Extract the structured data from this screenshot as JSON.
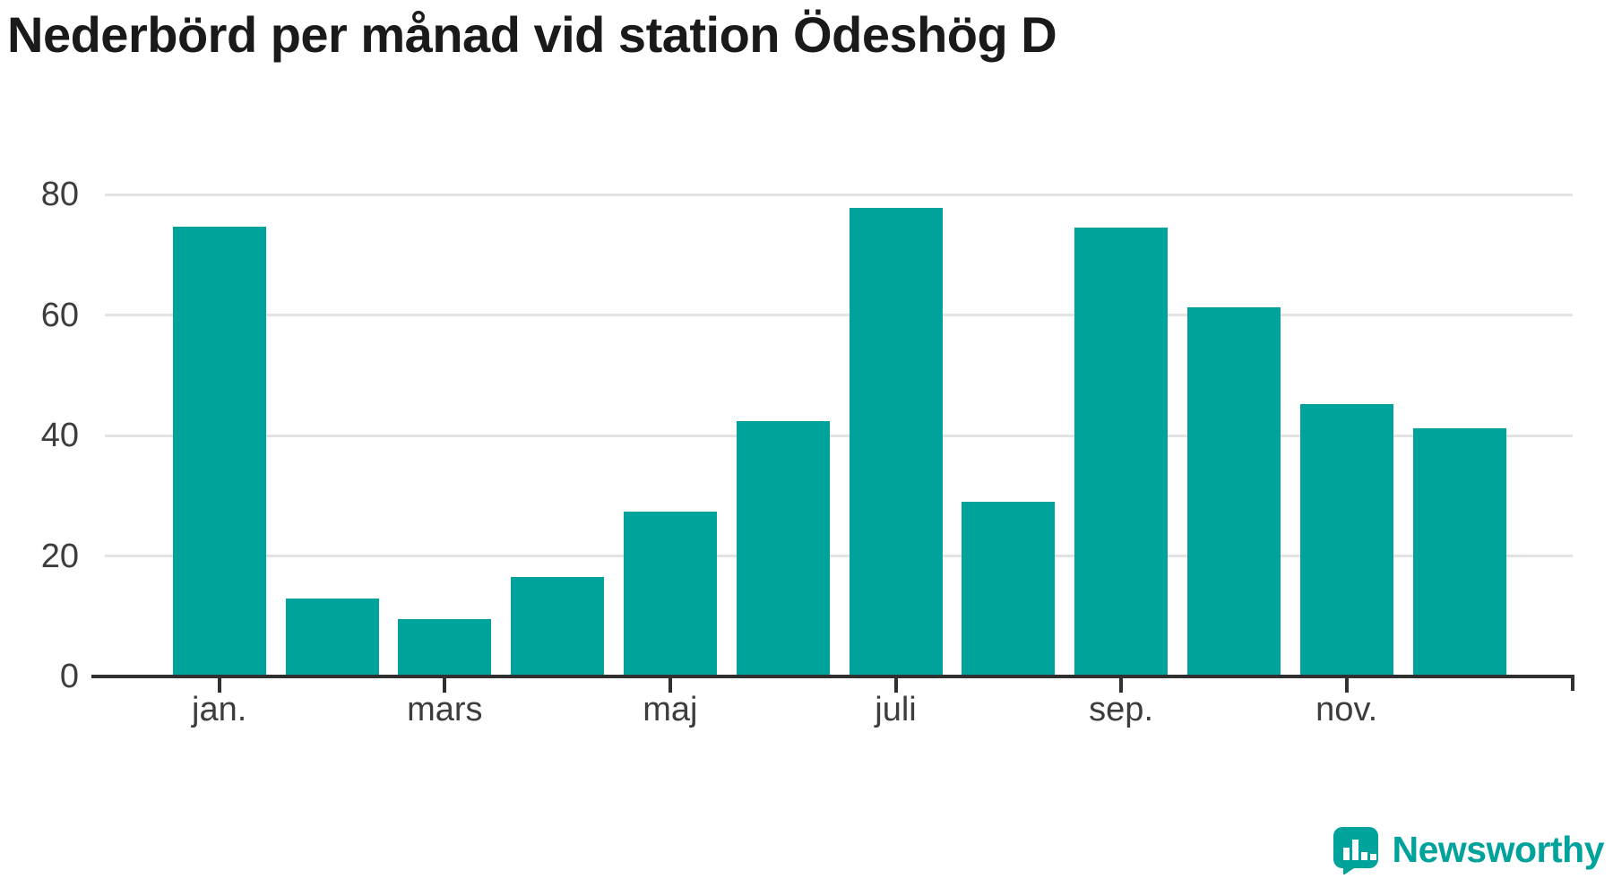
{
  "title": "Nederbörd per månad vid station Ödeshög D",
  "colors": {
    "bar": "#00a39b",
    "axis_line": "#303030",
    "gridline": "#e3e3e3",
    "title_text": "#1a1a1a",
    "tick_label_text": "#3d3d3d",
    "logo": "#00a39b",
    "background": "#ffffff"
  },
  "y_axis": {
    "tick_labels": [
      "0",
      "20",
      "40",
      "60",
      "80"
    ]
  },
  "x_axis": {
    "tick_labels": [
      "jan.",
      "mars",
      "maj",
      "juli",
      "sep.",
      "nov."
    ]
  },
  "logo": {
    "text": "Newsworthy"
  },
  "chart_data": {
    "type": "bar",
    "title": "Nederbörd per månad vid station Ödeshög D",
    "categories": [
      "jan.",
      "",
      "mars",
      "",
      "maj",
      "",
      "juli",
      "",
      "sep.",
      "",
      "nov.",
      ""
    ],
    "values": [
      74.7,
      13,
      9.5,
      16.5,
      27.4,
      42.4,
      77.7,
      29,
      74.5,
      61.3,
      45.2,
      41.2
    ],
    "y_ticks": [
      0,
      20,
      40,
      60,
      80
    ],
    "ylim": [
      0,
      80
    ],
    "grid": "horizontal-only",
    "legend": "none",
    "bar_color": "#00a39b"
  }
}
